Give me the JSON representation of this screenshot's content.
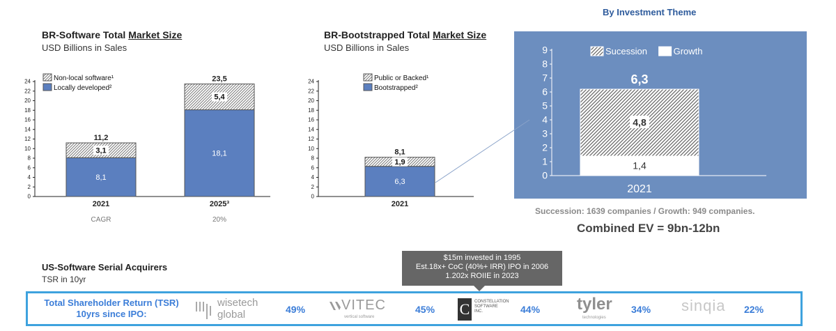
{
  "charts_text": {
    "left": {
      "title_prefix": "BR-Software Total ",
      "title_underlined": "Market Size",
      "subtitle": "USD Billions in Sales"
    },
    "mid": {
      "title_prefix": "BR-Bootstrapped Total ",
      "title_underlined": "Market Size",
      "subtitle": "USD Billions in Sales"
    },
    "right_header": "By Investment Theme"
  },
  "chart_data": [
    {
      "type": "bar",
      "stacked": true,
      "title": "BR-Software Total Market Size",
      "subtitle": "USD Billions in Sales",
      "categories": [
        "2021",
        "2025³"
      ],
      "series": [
        {
          "name": "Locally developed²",
          "values": [
            8.1,
            18.1
          ],
          "labels": [
            "8,1",
            "18,1"
          ],
          "color": "#5b7fbf"
        },
        {
          "name": "Non-local software¹",
          "values": [
            3.1,
            5.4
          ],
          "labels": [
            "3,1",
            "5,4"
          ],
          "color": "hatch"
        }
      ],
      "totals": [
        "11,2",
        "23,5"
      ],
      "ylim": [
        0,
        24
      ],
      "yticks": [
        0,
        2,
        4,
        6,
        8,
        10,
        12,
        14,
        16,
        18,
        20,
        22,
        24
      ],
      "legend": "top-left",
      "footer_row": {
        "label": "CAGR",
        "value": "20%"
      }
    },
    {
      "type": "bar",
      "stacked": true,
      "title": "BR-Bootstrapped Total Market Size",
      "subtitle": "USD Billions in Sales",
      "categories": [
        "2021"
      ],
      "series": [
        {
          "name": "Bootstrapped²",
          "values": [
            6.3
          ],
          "labels": [
            "6,3"
          ],
          "color": "#5b7fbf"
        },
        {
          "name": "Public or Backed¹",
          "values": [
            1.9
          ],
          "labels": [
            "1,9"
          ],
          "color": "hatch"
        }
      ],
      "totals": [
        "8,1"
      ],
      "ylim": [
        0,
        24
      ],
      "yticks": [
        0,
        2,
        4,
        6,
        8,
        10,
        12,
        14,
        16,
        18,
        20,
        22,
        24
      ],
      "legend": "top-left"
    },
    {
      "type": "bar",
      "stacked": true,
      "title": "By Investment Theme",
      "categories": [
        "2021"
      ],
      "series": [
        {
          "name": "Growth",
          "values": [
            1.4
          ],
          "labels": [
            "1,4"
          ],
          "color": "#ffffff"
        },
        {
          "name": "Sucession",
          "values": [
            4.8
          ],
          "labels": [
            "4,8"
          ],
          "color": "hatch"
        }
      ],
      "totals": [
        "6,3"
      ],
      "ylim": [
        0,
        9
      ],
      "yticks": [
        0,
        1,
        2,
        3,
        4,
        5,
        6,
        7,
        8,
        9
      ],
      "legend": "top",
      "background": "#6c8ebf"
    }
  ],
  "notes": {
    "succession": "Succession: 1639 companies / Growth: 949 companies.",
    "combined_ev": "Combined EV = 9bn-12bn"
  },
  "acquirers": {
    "title": "US-Software Serial Acquirers",
    "subtitle": "TSR in 10yr",
    "callout_lines": [
      "$15m invested in 1995",
      "Est.18x+ CoC (40%+ IRR) IPO in 2006",
      "1.202x ROIIE in 2023"
    ],
    "tsr_label_lines": [
      "Total Shareholder Return (TSR)",
      "10yrs since IPO:"
    ],
    "companies": [
      {
        "name_a": "wisetech",
        "name_b": "global",
        "tsr": "49%"
      },
      {
        "name": "VITEC",
        "tagline": "vertical software",
        "tsr": "45%"
      },
      {
        "name_a": "CONSTELLATION",
        "name_b": "SOFTWARE",
        "name_c": "INC.",
        "tsr": "44%"
      },
      {
        "name": "tyler",
        "tagline": "technologies",
        "tsr": "34%"
      },
      {
        "name": "sinqia",
        "tsr": "22%"
      }
    ]
  }
}
